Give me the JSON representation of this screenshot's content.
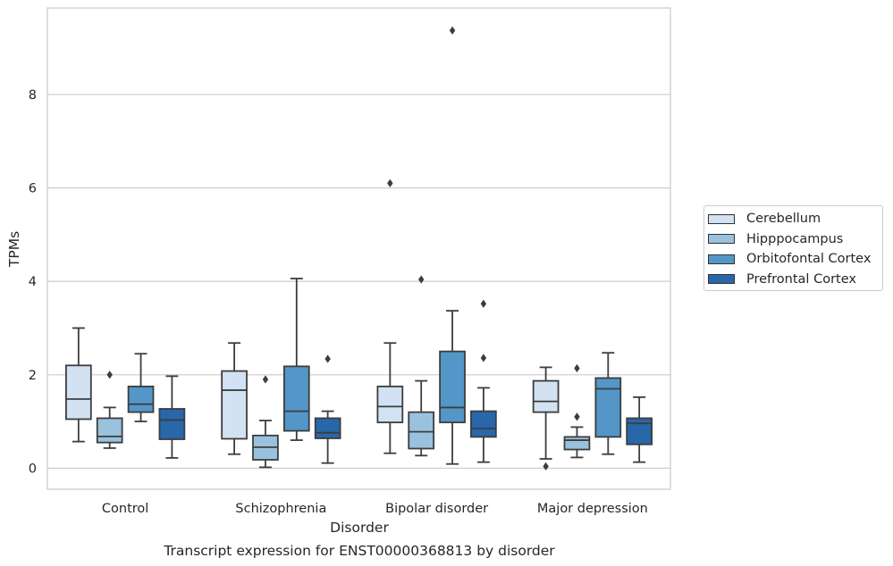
{
  "chart_data": {
    "type": "box",
    "title": "Transcript expression for ENST00000368813 by disorder",
    "xlabel": "Disorder",
    "ylabel": "TPMs",
    "ylim": [
      -0.45,
      9.85
    ],
    "yticks": [
      0,
      2,
      4,
      6,
      8
    ],
    "grid": "horizontal",
    "legend_position": "right",
    "categories": [
      "Control",
      "Schizophrenia",
      "Bipolar disorder",
      "Major depression"
    ],
    "series": [
      {
        "name": "Cerebellum",
        "color": "#d2e2f2",
        "boxes": [
          {
            "whislo": 0.57,
            "q1": 1.05,
            "med": 1.48,
            "q3": 2.2,
            "whishi": 3.0,
            "fliers": []
          },
          {
            "whislo": 0.3,
            "q1": 0.63,
            "med": 1.67,
            "q3": 2.08,
            "whishi": 2.68,
            "fliers": []
          },
          {
            "whislo": 0.32,
            "q1": 0.98,
            "med": 1.32,
            "q3": 1.75,
            "whishi": 2.68,
            "fliers": [
              6.1
            ]
          },
          {
            "whislo": 0.2,
            "q1": 1.2,
            "med": 1.43,
            "q3": 1.87,
            "whishi": 2.16,
            "fliers": [
              0.04
            ]
          }
        ]
      },
      {
        "name": "Hipppocampus",
        "color": "#9ac2de",
        "boxes": [
          {
            "whislo": 0.43,
            "q1": 0.55,
            "med": 0.68,
            "q3": 1.07,
            "whishi": 1.3,
            "fliers": [
              2.0
            ]
          },
          {
            "whislo": 0.02,
            "q1": 0.18,
            "med": 0.45,
            "q3": 0.7,
            "whishi": 1.02,
            "fliers": [
              1.9
            ]
          },
          {
            "whislo": 0.27,
            "q1": 0.42,
            "med": 0.78,
            "q3": 1.2,
            "whishi": 1.87,
            "fliers": [
              4.04
            ]
          },
          {
            "whislo": 0.23,
            "q1": 0.4,
            "med": 0.6,
            "q3": 0.67,
            "whishi": 0.88,
            "fliers": [
              1.1,
              2.14
            ]
          }
        ]
      },
      {
        "name": "Orbitofontal Cortex",
        "color": "#5396c7",
        "boxes": [
          {
            "whislo": 1.0,
            "q1": 1.2,
            "med": 1.37,
            "q3": 1.75,
            "whishi": 2.45,
            "fliers": []
          },
          {
            "whislo": 0.6,
            "q1": 0.8,
            "med": 1.22,
            "q3": 2.18,
            "whishi": 4.06,
            "fliers": []
          },
          {
            "whislo": 0.09,
            "q1": 0.98,
            "med": 1.3,
            "q3": 2.5,
            "whishi": 3.37,
            "fliers": [
              9.37
            ]
          },
          {
            "whislo": 0.3,
            "q1": 0.67,
            "med": 1.7,
            "q3": 1.93,
            "whishi": 2.47,
            "fliers": []
          }
        ]
      },
      {
        "name": "Prefrontal Cortex",
        "color": "#2767aa",
        "boxes": [
          {
            "whislo": 0.22,
            "q1": 0.62,
            "med": 1.03,
            "q3": 1.27,
            "whishi": 1.97,
            "fliers": []
          },
          {
            "whislo": 0.11,
            "q1": 0.64,
            "med": 0.76,
            "q3": 1.07,
            "whishi": 1.22,
            "fliers": [
              2.34
            ]
          },
          {
            "whislo": 0.13,
            "q1": 0.67,
            "med": 0.85,
            "q3": 1.22,
            "whishi": 1.72,
            "fliers": [
              2.36,
              3.52
            ]
          },
          {
            "whislo": 0.13,
            "q1": 0.51,
            "med": 0.96,
            "q3": 1.07,
            "whishi": 1.52,
            "fliers": []
          }
        ]
      }
    ]
  }
}
